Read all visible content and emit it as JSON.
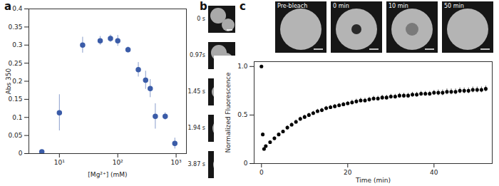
{
  "chart_data": [
    {
      "type": "scatter",
      "title": "a",
      "x_label": "[Mg²⁺] (mM)",
      "y_label": "Abs 350",
      "log": "x",
      "grid": false,
      "marker": "circle",
      "color": "#3b5ca8",
      "x": [
        5,
        10,
        25,
        50,
        75,
        100,
        150,
        225,
        300,
        360,
        440,
        650,
        950
      ],
      "values": [
        0.005,
        0.113,
        0.3,
        0.312,
        0.318,
        0.312,
        0.287,
        0.232,
        0.203,
        0.18,
        0.103,
        0.103,
        0.028
      ],
      "errors": [
        0.003,
        0.05,
        0.022,
        0.012,
        0.01,
        0.015,
        0.008,
        0.02,
        0.025,
        0.025,
        0.035,
        0.01,
        0.015
      ],
      "xlim": [
        3,
        1500
      ],
      "xticks": [
        {
          "value": 10,
          "label": "10¹"
        },
        {
          "value": 100,
          "label": "10²"
        },
        {
          "value": 1000,
          "label": "10³"
        }
      ],
      "ylim": [
        0,
        0.4
      ],
      "yticks": [
        0,
        0.05,
        0.1,
        0.15,
        0.2,
        0.25,
        0.3,
        0.35,
        0.4
      ]
    },
    {
      "type": "scatter",
      "title": "c",
      "x_label": "Time (min)",
      "y_label": "Normalized Fluorescence",
      "grid": false,
      "marker": "circle",
      "color": "#000000",
      "x": [
        0,
        0.3,
        0.6,
        1,
        2,
        3,
        4,
        5,
        6,
        7,
        8,
        9,
        10,
        11,
        12,
        13,
        14,
        15,
        16,
        17,
        18,
        19,
        20,
        21,
        22,
        23,
        24,
        25,
        26,
        27,
        28,
        29,
        30,
        31,
        32,
        33,
        34,
        35,
        36,
        37,
        38,
        39,
        40,
        41,
        42,
        43,
        44,
        45,
        46,
        47,
        48,
        49,
        50,
        51,
        52
      ],
      "values": [
        1.0,
        0.3,
        0.15,
        0.18,
        0.22,
        0.26,
        0.3,
        0.33,
        0.37,
        0.4,
        0.43,
        0.46,
        0.48,
        0.5,
        0.52,
        0.54,
        0.55,
        0.57,
        0.58,
        0.59,
        0.6,
        0.61,
        0.62,
        0.63,
        0.64,
        0.65,
        0.65,
        0.66,
        0.67,
        0.67,
        0.68,
        0.68,
        0.69,
        0.69,
        0.7,
        0.7,
        0.7,
        0.71,
        0.71,
        0.72,
        0.72,
        0.72,
        0.73,
        0.73,
        0.73,
        0.74,
        0.74,
        0.74,
        0.75,
        0.75,
        0.75,
        0.76,
        0.76,
        0.76,
        0.77
      ],
      "errors": [
        0.01,
        0.01,
        0.01,
        0.01,
        0.01,
        0.015,
        0.015,
        0.015,
        0.02,
        0.02,
        0.02,
        0.02,
        0.02,
        0.02,
        0.02,
        0.02,
        0.02,
        0.02,
        0.02,
        0.02,
        0.02,
        0.02,
        0.02,
        0.025,
        0.025,
        0.025,
        0.025,
        0.025,
        0.025,
        0.025,
        0.025,
        0.025,
        0.025,
        0.025,
        0.025,
        0.025,
        0.025,
        0.025,
        0.025,
        0.025,
        0.025,
        0.025,
        0.025,
        0.03,
        0.03,
        0.03,
        0.03,
        0.03,
        0.03,
        0.03,
        0.03,
        0.03,
        0.03,
        0.03,
        0.03
      ],
      "xlim": [
        -1.7,
        53.5
      ],
      "xticks": [
        0,
        20,
        40
      ],
      "ylim": [
        0,
        1.05
      ],
      "yticks": [
        0,
        0.5,
        {
          "value": 1,
          "label": "1.0"
        }
      ]
    }
  ],
  "images": {
    "b": {
      "label": "b",
      "frames": [
        "0 s",
        "0.97s",
        "1.45 s",
        "1.94 s",
        "3.87 s"
      ]
    },
    "c": {
      "frames": [
        "Pre-bleach",
        "0 min",
        "10 min",
        "50 min"
      ]
    }
  }
}
